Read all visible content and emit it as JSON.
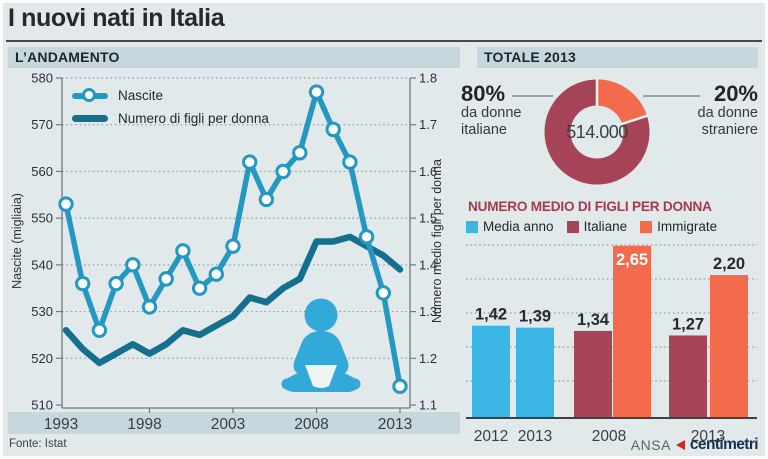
{
  "page": {
    "title": "I nuovi nati in Italia",
    "source": "Fonte: Istat",
    "credit": {
      "agency": "ANSA",
      "brand": "centimetri"
    }
  },
  "sections": {
    "trend_header": "L’ANDAMENTO",
    "total_header": "TOTALE 2013"
  },
  "colors": {
    "background": "#e2e9eb",
    "header_band": "#c6d8de",
    "nascite_blue": "#2598c2",
    "figli_teal": "#156f8f",
    "bar_blue": "#3bb5e3",
    "maroon": "#a64457",
    "orange": "#f46a4c",
    "grid": "#93a5ab",
    "axis": "#6d7b80",
    "text_dark": "#2a3134",
    "chart_title_maroon": "#a23b50",
    "credit_red": "#c52b26",
    "credit_navy": "#1c3050",
    "baby_blue": "#33a9da"
  },
  "chart_data": [
    {
      "id": "andamento",
      "type": "line",
      "x": [
        1993,
        1994,
        1995,
        1996,
        1997,
        1998,
        1999,
        2000,
        2001,
        2002,
        2003,
        2004,
        2005,
        2006,
        2007,
        2008,
        2009,
        2010,
        2011,
        2012,
        2013
      ],
      "x_tick_labels": [
        "1993",
        "1998",
        "2003",
        "2008",
        "2013"
      ],
      "series": [
        {
          "name": "Nascite",
          "axis": "left",
          "color_key": "nascite_blue",
          "markers": true,
          "values": [
            553,
            536,
            526,
            536,
            540,
            531,
            537,
            543,
            535,
            538,
            544,
            562,
            554,
            560,
            564,
            577,
            569,
            562,
            546,
            534,
            514
          ]
        },
        {
          "name": "Numero di figli per donna",
          "axis": "right",
          "color_key": "figli_teal",
          "markers": false,
          "values": [
            1.26,
            1.22,
            1.19,
            1.21,
            1.23,
            1.21,
            1.23,
            1.26,
            1.25,
            1.27,
            1.29,
            1.33,
            1.32,
            1.35,
            1.37,
            1.45,
            1.45,
            1.46,
            1.44,
            1.42,
            1.39
          ]
        }
      ],
      "left_axis": {
        "title": "Nascite (migliaia)",
        "min": 510,
        "max": 580,
        "tick_labels": [
          "580",
          "570",
          "560",
          "550",
          "540",
          "530",
          "520",
          "510"
        ]
      },
      "right_axis": {
        "title": "Numero medio figli per donna",
        "min": 1.1,
        "max": 1.8,
        "tick_labels": [
          "1.8",
          "1.7",
          "1.6",
          "1.5",
          "1.4",
          "1.3",
          "1.2",
          "1.1"
        ]
      },
      "grid": "dotted-horizontal"
    },
    {
      "id": "totale-2013",
      "type": "pie",
      "donut": true,
      "center_label": "514.000",
      "slices": [
        {
          "label": "da donne italiane",
          "pct": 80,
          "pct_label": "80%",
          "color_key": "maroon"
        },
        {
          "label": "da donne straniere",
          "pct": 20,
          "pct_label": "20%",
          "color_key": "orange"
        }
      ]
    },
    {
      "id": "numero-medio-figli",
      "type": "bar",
      "title": "NUMERO MEDIO DI FIGLI PER DONNA",
      "legend": [
        {
          "label": "Media anno",
          "color_key": "bar_blue"
        },
        {
          "label": "Italiane",
          "color_key": "maroon"
        },
        {
          "label": "Immigrate",
          "color_key": "orange"
        }
      ],
      "bars": [
        {
          "group": "2012",
          "series": "Media anno",
          "value": 1.42,
          "label": "1,42",
          "color_key": "bar_blue",
          "label_inside": false
        },
        {
          "group": "2013",
          "series": "Media anno",
          "value": 1.39,
          "label": "1,39",
          "color_key": "bar_blue",
          "label_inside": false
        },
        {
          "group": "2008",
          "series": "Italiane",
          "value": 1.34,
          "label": "1,34",
          "color_key": "maroon",
          "label_inside": false
        },
        {
          "group": "2008",
          "series": "Immigrate",
          "value": 2.65,
          "label": "2,65",
          "color_key": "orange",
          "label_inside": true
        },
        {
          "group": "2013",
          "series": "Italiane",
          "value": 1.27,
          "label": "1,27",
          "color_key": "maroon",
          "label_inside": false
        },
        {
          "group": "2013",
          "series": "Immigrate",
          "value": 2.2,
          "label": "2,20",
          "color_key": "orange",
          "label_inside": false
        }
      ],
      "group_labels": [
        "2012",
        "2013",
        "2008",
        "2013"
      ],
      "ylim": [
        0,
        3
      ]
    }
  ]
}
